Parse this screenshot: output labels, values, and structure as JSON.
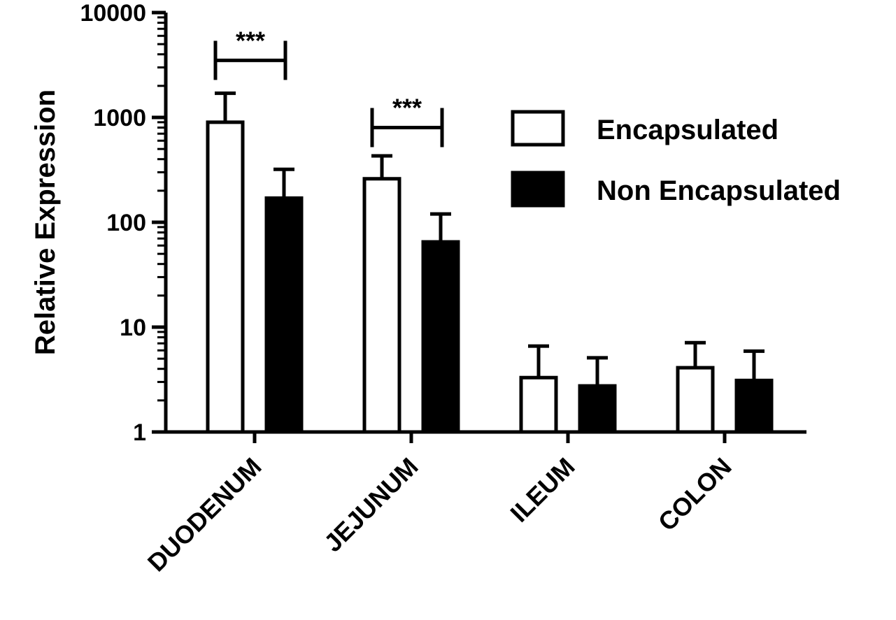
{
  "chart_data": {
    "type": "bar",
    "ylabel": "Relative Expression",
    "yscale": "log",
    "ylim": [
      1,
      10000
    ],
    "yticks": [
      1,
      10,
      100,
      1000,
      10000
    ],
    "ytick_labels": [
      "1",
      "10",
      "100",
      "1000",
      "10000"
    ],
    "categories": [
      "DUODENUM",
      "JEJUNUM",
      "ILEUM",
      "COLON"
    ],
    "series": [
      {
        "name": "Encapsulated",
        "values": [
          900,
          260,
          3.3,
          4.1
        ],
        "error_upper": [
          1700,
          430,
          6.6,
          7.1
        ],
        "fill": "#ffffff",
        "stroke": "#000000"
      },
      {
        "name": "Non Encapsulated",
        "values": [
          170,
          65,
          2.75,
          3.1
        ],
        "error_upper": [
          320,
          120,
          5.1,
          5.9
        ],
        "fill": "#000000",
        "stroke": "#000000"
      }
    ],
    "legend_position": "top-right",
    "grid": false,
    "annotations": [
      {
        "text": "***",
        "category": "DUODENUM",
        "y": 3500
      },
      {
        "text": "***",
        "category": "JEJUNUM",
        "y": 800
      }
    ]
  }
}
